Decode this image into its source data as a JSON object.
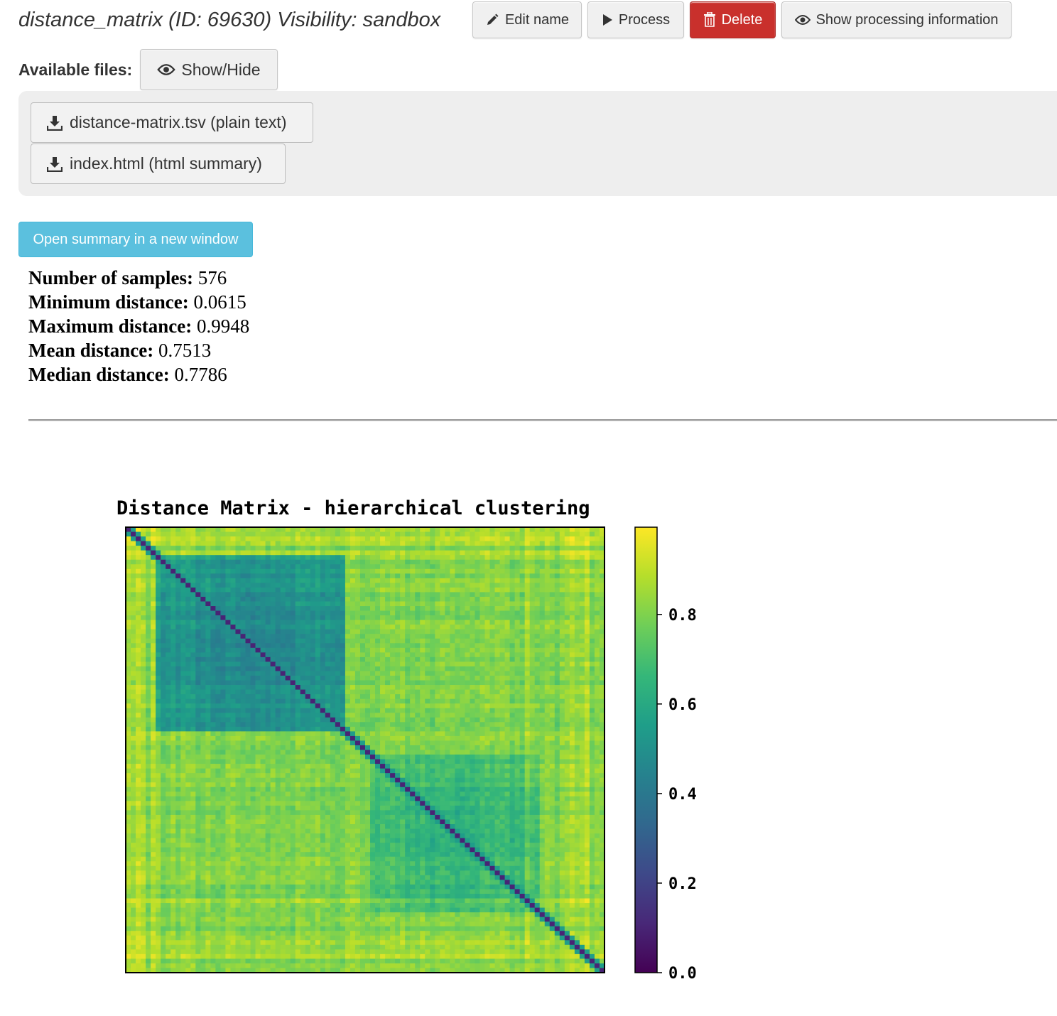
{
  "header": {
    "title": "distance_matrix (ID: 69630) Visibility: sandbox",
    "edit_name_label": "Edit name",
    "process_label": "Process",
    "delete_label": "Delete",
    "show_processing_label": "Show processing information"
  },
  "files": {
    "label": "Available files:",
    "toggle_label": "Show/Hide",
    "items": [
      {
        "label": "distance-matrix.tsv (plain text)"
      },
      {
        "label": "index.html (html summary)"
      }
    ]
  },
  "summary": {
    "open_button_label": "Open summary in a new window",
    "stats": [
      {
        "label": "Number of samples:",
        "value": "576"
      },
      {
        "label": "Minimum distance:",
        "value": "0.0615"
      },
      {
        "label": "Maximum distance:",
        "value": "0.9948"
      },
      {
        "label": "Mean distance:",
        "value": "0.7513"
      },
      {
        "label": "Median distance:",
        "value": "0.7786"
      }
    ]
  },
  "colors": {
    "delete_button": "#c9302c",
    "open_button": "#5bc0de",
    "colormap": [
      "#440154",
      "#482878",
      "#3e4989",
      "#31688e",
      "#26828e",
      "#1f9e89",
      "#35b779",
      "#6ece58",
      "#b5de2b",
      "#fde725"
    ]
  },
  "chart_data": {
    "type": "heatmap",
    "title": "Distance Matrix - hierarchical clustering",
    "n_samples": 576,
    "colorbar": {
      "colormap": "viridis",
      "range": [
        0.0,
        0.9948
      ],
      "ticks": [
        0.0,
        0.2,
        0.4,
        0.6,
        0.8
      ],
      "tick_labels": [
        "0.0",
        "0.2",
        "0.4",
        "0.6",
        "0.8"
      ]
    },
    "diagonal_value": 0.0,
    "value_range": [
      0.0615,
      0.9948
    ],
    "clusters": [
      {
        "sample_range": [
          40,
          260
        ],
        "approx_within_distance": 0.52
      },
      {
        "sample_range": [
          295,
          495
        ],
        "approx_within_distance": 0.68
      }
    ],
    "approx_background_distance": 0.8
  }
}
